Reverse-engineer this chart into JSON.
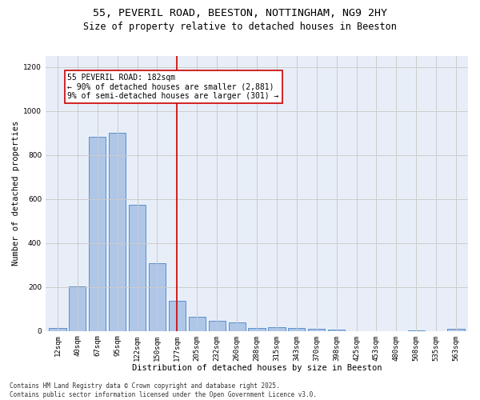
{
  "title_line1": "55, PEVERIL ROAD, BEESTON, NOTTINGHAM, NG9 2HY",
  "title_line2": "Size of property relative to detached houses in Beeston",
  "xlabel": "Distribution of detached houses by size in Beeston",
  "ylabel": "Number of detached properties",
  "footer": "Contains HM Land Registry data © Crown copyright and database right 2025.\nContains public sector information licensed under the Open Government Licence v3.0.",
  "categories": [
    "12sqm",
    "40sqm",
    "67sqm",
    "95sqm",
    "122sqm",
    "150sqm",
    "177sqm",
    "205sqm",
    "232sqm",
    "260sqm",
    "288sqm",
    "315sqm",
    "343sqm",
    "370sqm",
    "398sqm",
    "425sqm",
    "453sqm",
    "480sqm",
    "508sqm",
    "535sqm",
    "563sqm"
  ],
  "values": [
    12,
    202,
    882,
    900,
    572,
    308,
    138,
    65,
    48,
    40,
    15,
    17,
    15,
    10,
    5,
    0,
    0,
    0,
    3,
    0,
    10
  ],
  "bar_color": "#aec6e8",
  "bar_edge_color": "#5b8fc9",
  "vline_x": 6,
  "vline_color": "#cc0000",
  "annotation_text": "55 PEVERIL ROAD: 182sqm\n← 90% of detached houses are smaller (2,881)\n9% of semi-detached houses are larger (301) →",
  "ylim": [
    0,
    1250
  ],
  "yticks": [
    0,
    200,
    400,
    600,
    800,
    1000,
    1200
  ],
  "grid_color": "#cccccc",
  "background_color": "#e8eef8",
  "title_fontsize": 9.5,
  "subtitle_fontsize": 8.5,
  "axis_label_fontsize": 7.5,
  "tick_fontsize": 6.5,
  "annotation_fontsize": 7,
  "footer_fontsize": 5.5
}
